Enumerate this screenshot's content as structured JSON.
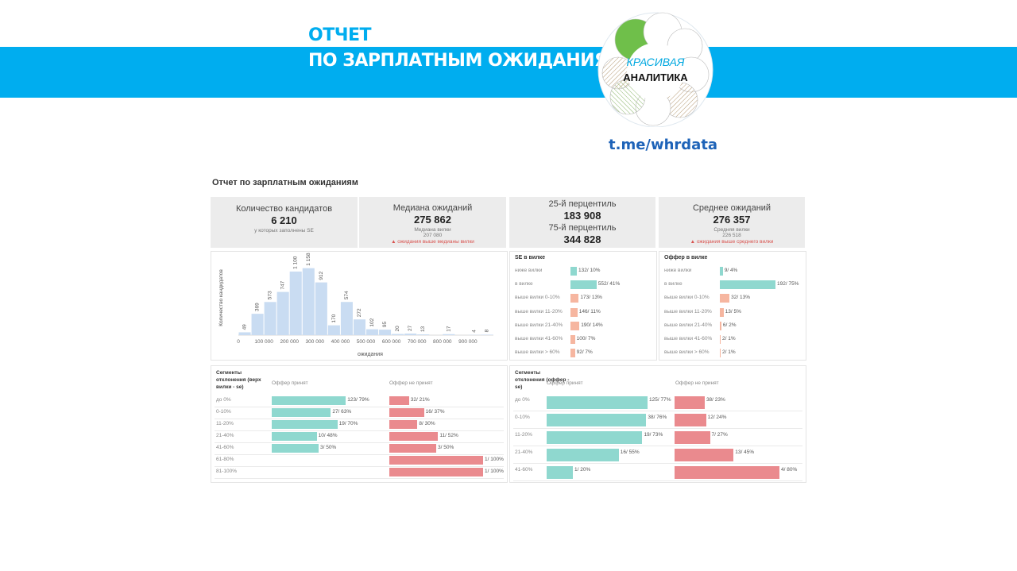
{
  "header": {
    "title_line1": "ОТЧЕТ",
    "title_line2": "ПО ЗАРПЛАТНЫМ ОЖИДАНИЯМ",
    "logo_line1": "КРАСИВАЯ",
    "logo_line2": "АНАЛИТИКА",
    "link": "t.me/whrdata"
  },
  "colors": {
    "banner": "#00adef",
    "hist": "#c9dcf2",
    "teal": "#8fd8cf",
    "salmon": "#f6b6a0",
    "red": "#ea8a8e"
  },
  "report": {
    "title": "Отчет по зарплатным ожиданиям",
    "kpis": {
      "candidates": {
        "label": "Количество кандидатов",
        "value": "6 210",
        "sub": "у которых заполнены SE"
      },
      "median": {
        "label": "Медиана ожиданий",
        "value": "275 862",
        "sub_label": "Медиана вилки",
        "sub_value": "207 080",
        "warning": "▲ ожидания выше медианы вилки"
      },
      "percentiles": {
        "p25_label": "25-й перцентиль",
        "p25_value": "183 908",
        "p75_label": "75-й перцентиль",
        "p75_value": "344 828"
      },
      "mean": {
        "label": "Среднее ожиданий",
        "value": "276 357",
        "sub_label": "Средняя вилки",
        "sub_value": "226 518",
        "warning": "▲ ожидания выше среднего вилки"
      }
    },
    "se_panel": {
      "title": "SE в вилке",
      "rows": [
        {
          "label": "ниже вилки",
          "text": "132/ 10%",
          "pct": 10,
          "color": "teal"
        },
        {
          "label": "в вилке",
          "text": "552/ 41%",
          "pct": 41,
          "color": "teal"
        },
        {
          "label": "выше вилки 0-10%",
          "text": "173/ 13%",
          "pct": 13,
          "color": "salmon"
        },
        {
          "label": "выше вилки 11-20%",
          "text": "146/ 11%",
          "pct": 11,
          "color": "salmon"
        },
        {
          "label": "выше вилки 21-40%",
          "text": "190/ 14%",
          "pct": 14,
          "color": "salmon"
        },
        {
          "label": "выше вилки 41-60%",
          "text": "100/ 7%",
          "pct": 7,
          "color": "salmon"
        },
        {
          "label": "выше вилки > 60%",
          "text": "92/ 7%",
          "pct": 7,
          "color": "salmon"
        }
      ]
    },
    "offer_panel": {
      "title": "Оффер в вилке",
      "rows": [
        {
          "label": "ниже вилки",
          "text": "9/ 4%",
          "pct": 4,
          "color": "teal"
        },
        {
          "label": "в вилке",
          "text": "192/ 75%",
          "pct": 75,
          "color": "teal"
        },
        {
          "label": "выше вилки 0-10%",
          "text": "32/ 13%",
          "pct": 13,
          "color": "salmon"
        },
        {
          "label": "выше вилки 11-20%",
          "text": "13/ 5%",
          "pct": 5,
          "color": "salmon"
        },
        {
          "label": "выше вилки 21-40%",
          "text": "6/ 2%",
          "pct": 2,
          "color": "salmon"
        },
        {
          "label": "выше вилки 41-60%",
          "text": "2/ 1%",
          "pct": 1,
          "color": "salmon"
        },
        {
          "label": "выше вилки > 60%",
          "text": "2/ 1%",
          "pct": 1,
          "color": "salmon"
        }
      ]
    },
    "seg1": {
      "title": "Сегменты отклонения (верх вилки - se)",
      "col_accepted": "Оффер принят",
      "col_rejected": "Оффер не принят",
      "rows": [
        {
          "label": "до 0%",
          "acc_text": "123/ 79%",
          "acc": 79,
          "rej_text": "32/ 21%",
          "rej": 21
        },
        {
          "label": "0-10%",
          "acc_text": "27/ 63%",
          "acc": 63,
          "rej_text": "16/ 37%",
          "rej": 37
        },
        {
          "label": "11-20%",
          "acc_text": "19/ 70%",
          "acc": 70,
          "rej_text": "8/ 30%",
          "rej": 30
        },
        {
          "label": "21-40%",
          "acc_text": "10/ 48%",
          "acc": 48,
          "rej_text": "11/ 52%",
          "rej": 52
        },
        {
          "label": "41-60%",
          "acc_text": "3/ 50%",
          "acc": 50,
          "rej_text": "3/ 50%",
          "rej": 50
        },
        {
          "label": "61-80%",
          "acc_text": "",
          "acc": 0,
          "rej_text": "1/ 100%",
          "rej": 100
        },
        {
          "label": "81-100%",
          "acc_text": "",
          "acc": 0,
          "rej_text": "1/ 100%",
          "rej": 100
        }
      ]
    },
    "seg2": {
      "title": "Сегменты отклонения (оффер - se)",
      "col_accepted": "Оффер принят",
      "col_rejected": "Оффер не принят",
      "rows": [
        {
          "label": "до 0%",
          "acc_text": "125/ 77%",
          "acc": 77,
          "rej_text": "38/ 23%",
          "rej": 23
        },
        {
          "label": "0-10%",
          "acc_text": "38/ 76%",
          "acc": 76,
          "rej_text": "12/ 24%",
          "rej": 24
        },
        {
          "label": "11-20%",
          "acc_text": "19/ 73%",
          "acc": 73,
          "rej_text": "7/ 27%",
          "rej": 27
        },
        {
          "label": "21-40%",
          "acc_text": "16/ 55%",
          "acc": 55,
          "rej_text": "13/ 45%",
          "rej": 45
        },
        {
          "label": "41-60%",
          "acc_text": "1/ 20%",
          "acc": 20,
          "rej_text": "4/ 80%",
          "rej": 80
        }
      ]
    }
  },
  "chart_data": {
    "type": "bar",
    "title": "",
    "xlabel": "ожидания",
    "ylabel": "Количество кандидатов",
    "x_ticks": [
      "0",
      "100 000",
      "200 000",
      "300 000",
      "400 000",
      "500 000",
      "600 000",
      "700 000",
      "800 000",
      "900 000"
    ],
    "bins_start": [
      0,
      50000,
      100000,
      150000,
      200000,
      250000,
      300000,
      350000,
      400000,
      450000,
      500000,
      550000,
      600000,
      650000,
      700000,
      750000,
      800000,
      850000,
      900000,
      950000
    ],
    "values": [
      49,
      369,
      573,
      747,
      1100,
      1158,
      912,
      170,
      574,
      272,
      102,
      95,
      20,
      27,
      13,
      0,
      17,
      0,
      4,
      8
    ],
    "labels": [
      "49",
      "369",
      "573",
      "747",
      "1 100",
      "1 158",
      "912",
      "170",
      "574",
      "272",
      "102",
      "95",
      "20",
      "27",
      "13",
      "",
      "17",
      "",
      "4",
      "8"
    ],
    "xlim": [
      0,
      1000000
    ],
    "ylim": [
      0,
      1250
    ]
  }
}
